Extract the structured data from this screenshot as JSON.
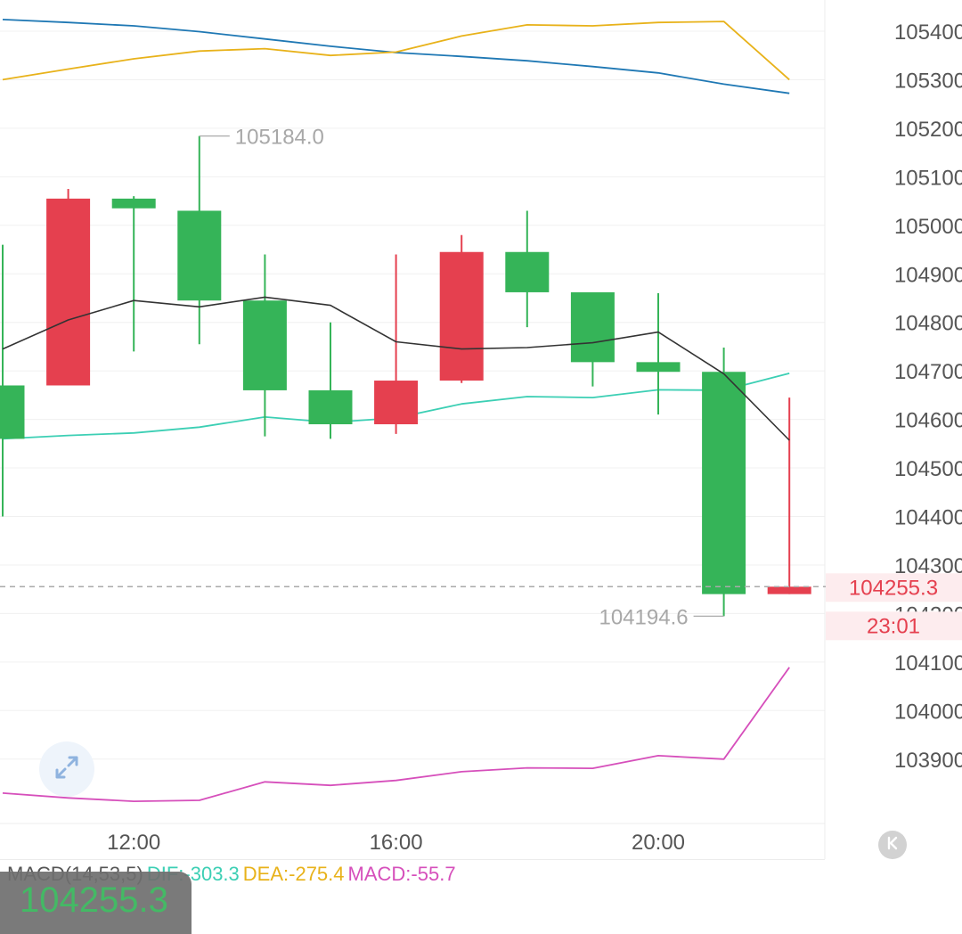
{
  "chart_data": {
    "type": "candlestick",
    "candles": [
      {
        "open": 104670,
        "high": 104960,
        "low": 104400,
        "close": 104560
      },
      {
        "open": 104670,
        "high": 105075,
        "low": 104670,
        "close": 105055
      },
      {
        "open": 105055,
        "high": 105060,
        "low": 104740,
        "close": 105035
      },
      {
        "open": 105030,
        "high": 105184,
        "low": 104755,
        "close": 104845
      },
      {
        "open": 104845,
        "high": 104940,
        "low": 104565,
        "close": 104660
      },
      {
        "open": 104660,
        "high": 104800,
        "low": 104560,
        "close": 104590
      },
      {
        "open": 104590,
        "high": 104940,
        "low": 104570,
        "close": 104680
      },
      {
        "open": 104680,
        "high": 104980,
        "low": 104675,
        "close": 104945
      },
      {
        "open": 104945,
        "high": 105030,
        "low": 104790,
        "close": 104862
      },
      {
        "open": 104862,
        "high": 104862,
        "low": 104668,
        "close": 104718
      },
      {
        "open": 104718,
        "high": 104860,
        "low": 104610,
        "close": 104698
      },
      {
        "open": 104698,
        "high": 104748,
        "low": 104194.6,
        "close": 104240
      },
      {
        "open": 104240,
        "high": 104645,
        "low": 104240,
        "close": 104255.3
      }
    ],
    "ma_black": [
      104745,
      104805,
      104845,
      104832,
      104852,
      104835,
      104760,
      104745,
      104748,
      104758,
      104780,
      104694,
      104557
    ],
    "ma_cyan": [
      104560,
      104567,
      104572,
      104584,
      104605,
      104594,
      104603,
      104632,
      104647,
      104645,
      104661,
      104660,
      104695
    ],
    "ma_orange": [
      105300,
      105322,
      105343,
      105359,
      105364,
      105350,
      105357,
      105390,
      105413,
      105411,
      105418,
      105420,
      105300
    ],
    "ma_blue": [
      105424,
      105418,
      105411,
      105399,
      105384,
      105369,
      105356,
      105348,
      105339,
      105327,
      105314,
      105291,
      105272
    ],
    "macd_line": [
      103830,
      103820,
      103813,
      103815,
      103853,
      103846,
      103856,
      103874,
      103882,
      103881,
      103907,
      103900,
      104089
    ],
    "y_ticks": [
      105400,
      105300,
      105200,
      105100,
      105000,
      104900,
      104800,
      104700,
      104600,
      104500,
      104400,
      104300,
      104200,
      104100,
      104000,
      103900
    ],
    "ylim": [
      103725,
      105425
    ],
    "x_ticks": [
      {
        "label": "12:00",
        "index": 2
      },
      {
        "label": "16:00",
        "index": 6
      },
      {
        "label": "20:00",
        "index": 10
      }
    ],
    "high_marker": {
      "value": 105184,
      "label": "105184.0",
      "index": 3
    },
    "low_marker": {
      "value": 104194.6,
      "label": "104194.6",
      "index": 11
    },
    "last_price": {
      "value": 104255.3,
      "label": "104255.3",
      "countdown": "23:01"
    },
    "colors": {
      "up": "#e5404f",
      "down": "#35b458",
      "ma_black": "#333333",
      "ma_cyan": "#3ccfb4",
      "ma_orange": "#e8b21a",
      "ma_blue": "#1f78b4",
      "macd": "#d64fbb"
    }
  },
  "macd_legend": {
    "title": "MACD(14,53,5)",
    "dif": "DIF:-303.3",
    "dea": "DEA:-275.4",
    "macd": "MACD:-55.7",
    "colors": {
      "title": "#555555",
      "dif": "#3ccfb4",
      "dea": "#e8b21a",
      "macd": "#d64fbb"
    }
  },
  "price_box": {
    "value": "104255.3"
  }
}
